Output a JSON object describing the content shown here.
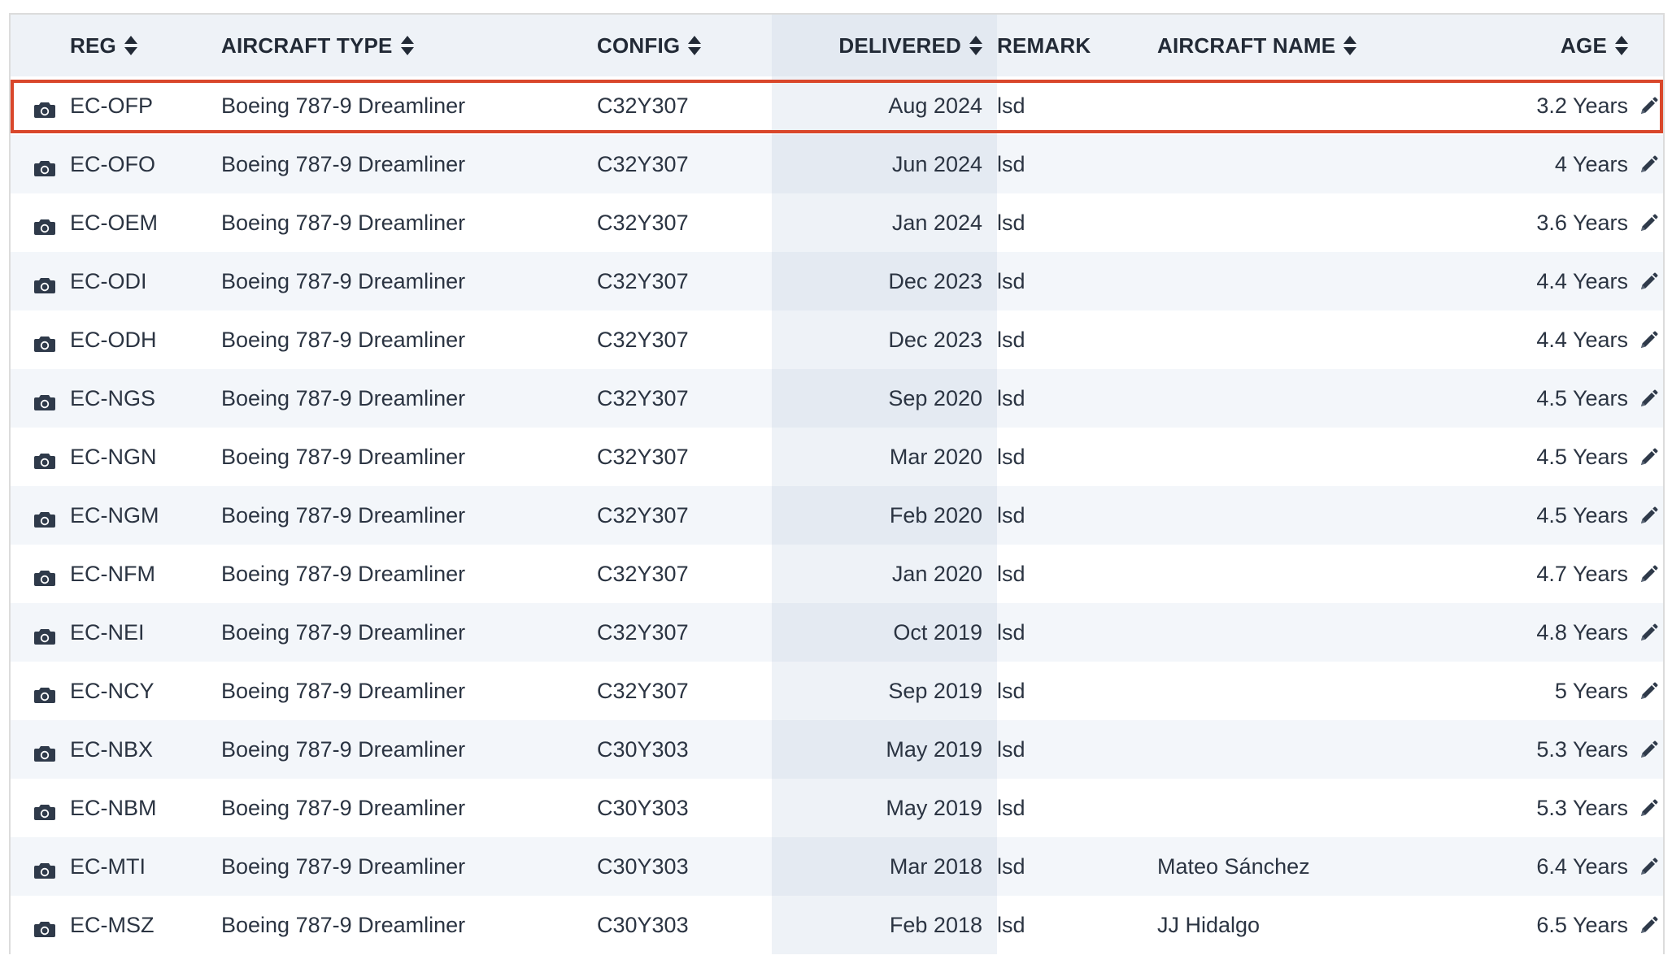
{
  "table": {
    "headers": {
      "reg": "REG",
      "aircraft_type": "AIRCRAFT TYPE",
      "config": "CONFIG",
      "delivered": "DELIVERED",
      "remark": "REMARK",
      "aircraft_name": "AIRCRAFT NAME",
      "age": "AGE"
    },
    "rows": [
      {
        "reg": "EC-OFP",
        "type": "Boeing 787-9 Dreamliner",
        "config": "C32Y307",
        "delivered": "Aug 2024",
        "remark": "lsd",
        "name": "",
        "age": "3.2 Years"
      },
      {
        "reg": "EC-OFO",
        "type": "Boeing 787-9 Dreamliner",
        "config": "C32Y307",
        "delivered": "Jun 2024",
        "remark": "lsd",
        "name": "",
        "age": "4 Years"
      },
      {
        "reg": "EC-OEM",
        "type": "Boeing 787-9 Dreamliner",
        "config": "C32Y307",
        "delivered": "Jan 2024",
        "remark": "lsd",
        "name": "",
        "age": "3.6 Years"
      },
      {
        "reg": "EC-ODI",
        "type": "Boeing 787-9 Dreamliner",
        "config": "C32Y307",
        "delivered": "Dec 2023",
        "remark": "lsd",
        "name": "",
        "age": "4.4 Years"
      },
      {
        "reg": "EC-ODH",
        "type": "Boeing 787-9 Dreamliner",
        "config": "C32Y307",
        "delivered": "Dec 2023",
        "remark": "lsd",
        "name": "",
        "age": "4.4 Years"
      },
      {
        "reg": "EC-NGS",
        "type": "Boeing 787-9 Dreamliner",
        "config": "C32Y307",
        "delivered": "Sep 2020",
        "remark": "lsd",
        "name": "",
        "age": "4.5 Years"
      },
      {
        "reg": "EC-NGN",
        "type": "Boeing 787-9 Dreamliner",
        "config": "C32Y307",
        "delivered": "Mar 2020",
        "remark": "lsd",
        "name": "",
        "age": "4.5 Years"
      },
      {
        "reg": "EC-NGM",
        "type": "Boeing 787-9 Dreamliner",
        "config": "C32Y307",
        "delivered": "Feb 2020",
        "remark": "lsd",
        "name": "",
        "age": "4.5 Years"
      },
      {
        "reg": "EC-NFM",
        "type": "Boeing 787-9 Dreamliner",
        "config": "C32Y307",
        "delivered": "Jan 2020",
        "remark": "lsd",
        "name": "",
        "age": "4.7 Years"
      },
      {
        "reg": "EC-NEI",
        "type": "Boeing 787-9 Dreamliner",
        "config": "C32Y307",
        "delivered": "Oct 2019",
        "remark": "lsd",
        "name": "",
        "age": "4.8 Years"
      },
      {
        "reg": "EC-NCY",
        "type": "Boeing 787-9 Dreamliner",
        "config": "C32Y307",
        "delivered": "Sep 2019",
        "remark": "lsd",
        "name": "",
        "age": "5 Years"
      },
      {
        "reg": "EC-NBX",
        "type": "Boeing 787-9 Dreamliner",
        "config": "C30Y303",
        "delivered": "May 2019",
        "remark": "lsd",
        "name": "",
        "age": "5.3 Years"
      },
      {
        "reg": "EC-NBM",
        "type": "Boeing 787-9 Dreamliner",
        "config": "C30Y303",
        "delivered": "May 2019",
        "remark": "lsd",
        "name": "",
        "age": "5.3 Years"
      },
      {
        "reg": "EC-MTI",
        "type": "Boeing 787-9 Dreamliner",
        "config": "C30Y303",
        "delivered": "Mar 2018",
        "remark": "lsd",
        "name": "Mateo Sánchez",
        "age": "6.4 Years"
      },
      {
        "reg": "EC-MSZ",
        "type": "Boeing 787-9 Dreamliner",
        "config": "C30Y303",
        "delivered": "Feb 2018",
        "remark": "lsd",
        "name": "JJ Hidalgo",
        "age": "6.5 Years"
      }
    ],
    "highlighted_row": "EC-OFP"
  },
  "icons": {
    "row_photo": "camera-icon",
    "row_edit": "pencil-icon",
    "sort": "sort-icon"
  },
  "colors": {
    "highlight_border": "#d9472b",
    "header_bg": "#eef2f7",
    "text": "#2b3442",
    "icon": "#2f3a4a"
  }
}
